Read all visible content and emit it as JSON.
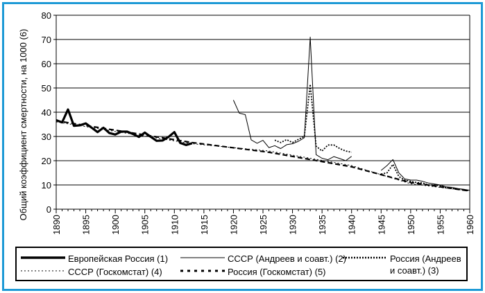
{
  "chart_data": {
    "type": "line",
    "ylabel": "Общий коэффициент смертности, на 1000 (6)",
    "xlabel": "",
    "xlim": [
      1890,
      1960
    ],
    "ylim": [
      0,
      80
    ],
    "x_ticks": [
      "1890",
      "1895",
      "1900",
      "1905",
      "1910",
      "1915",
      "1920",
      "1925",
      "1930",
      "1935",
      "1940",
      "1945",
      "1950",
      "1955",
      "1960"
    ],
    "y_ticks": [
      "0",
      "10",
      "20",
      "30",
      "40",
      "50",
      "60",
      "70",
      "80"
    ],
    "grid": "horizontal",
    "legend_position": "bottom",
    "series": [
      {
        "name": "Европейская Россия (1)",
        "style": "thick-solid",
        "color": "#000000",
        "x": [
          1890,
          1891,
          1892,
          1893,
          1894,
          1895,
          1896,
          1897,
          1898,
          1899,
          1900,
          1901,
          1902,
          1903,
          1904,
          1905,
          1906,
          1907,
          1908,
          1909,
          1910,
          1911,
          1912,
          1913
        ],
        "y": [
          36.7,
          35.8,
          41.1,
          34.4,
          34.6,
          35.4,
          33.6,
          31.8,
          33.6,
          31.4,
          30.8,
          32.0,
          32.0,
          31.0,
          29.8,
          31.6,
          29.9,
          28.2,
          28.3,
          29.8,
          31.8,
          27.3,
          26.5,
          27.2
        ]
      },
      {
        "name": "СССР (Андреев и соавт.) (2)",
        "style": "thin-solid",
        "color": "#000000",
        "x": [
          1920,
          1921,
          1922,
          1923,
          1924,
          1925,
          1926,
          1927,
          1928,
          1929,
          1930,
          1931,
          1932,
          1933,
          1934,
          1935,
          1936,
          1937,
          1938,
          1939,
          1940,
          1945,
          1946,
          1947,
          1948,
          1949,
          1950,
          1951,
          1952,
          1953,
          1954,
          1955,
          1956,
          1957,
          1958,
          1959,
          1960
        ],
        "y": [
          45.0,
          39.6,
          39.0,
          28.6,
          27.2,
          28.4,
          25.4,
          26.2,
          25.0,
          26.6,
          27.0,
          28.0,
          29.5,
          71.0,
          22.5,
          21.0,
          20.4,
          21.7,
          20.9,
          20.0,
          21.8,
          16.0,
          18.0,
          20.5,
          15.0,
          12.5,
          12.0,
          12.0,
          11.5,
          10.8,
          10.4,
          10.0,
          9.2,
          9.0,
          8.5,
          8.2,
          7.8
        ]
      },
      {
        "name": "Россия (Андреев и соавт.) (3)",
        "style": "dense-dots",
        "color": "#000000",
        "x": [
          1927,
          1928,
          1929,
          1930,
          1931,
          1932,
          1933,
          1934,
          1935,
          1936,
          1937,
          1938,
          1939,
          1940,
          1945,
          1946,
          1947,
          1948,
          1949,
          1950,
          1951,
          1952,
          1953,
          1954,
          1955,
          1956,
          1957,
          1958,
          1959,
          1960
        ],
        "y": [
          28.5,
          27.5,
          28.7,
          27.5,
          28.8,
          30.0,
          51.5,
          26.0,
          24.0,
          26.5,
          26.5,
          25.0,
          24.0,
          23.5,
          14.5,
          15.0,
          18.5,
          13.5,
          12.0,
          11.5,
          11.0,
          10.8,
          10.0,
          10.0,
          9.7,
          8.9,
          8.6,
          8.3,
          8.0,
          7.5
        ]
      },
      {
        "name": "СССР (Госкомстат) (4)",
        "style": "thin-dashed",
        "color": "#000000",
        "x": [
          1890,
          1913,
          1926,
          1940,
          1950,
          1960
        ],
        "y": [
          36.0,
          27.0,
          24.0,
          18.0,
          10.5,
          7.5
        ]
      },
      {
        "name": "Россия (Госкомстат) (5)",
        "style": "bold-dashed",
        "color": "#000000",
        "x": [
          1890,
          1913,
          1926,
          1940,
          1950,
          1960
        ],
        "y": [
          36.5,
          27.5,
          23.5,
          17.5,
          11.0,
          7.5
        ]
      }
    ]
  },
  "legend": {
    "items": [
      {
        "label": "Европейская Россия (1)",
        "style": "thick-solid"
      },
      {
        "label": "СССР (Андреев и соавт.) (2)",
        "style": "thin-solid"
      },
      {
        "label": "Россия (Андреев",
        "label2": "и соавт.) (3)",
        "style": "dense-dots"
      },
      {
        "label": "СССР (Госкомстат) (4)",
        "style": "thin-dashed"
      },
      {
        "label": "Россия (Госкомстат) (5)",
        "style": "bold-dashed"
      }
    ]
  },
  "colors": {
    "frame": "#1e9ad6",
    "grid": "#000000",
    "lines": "#000000"
  }
}
